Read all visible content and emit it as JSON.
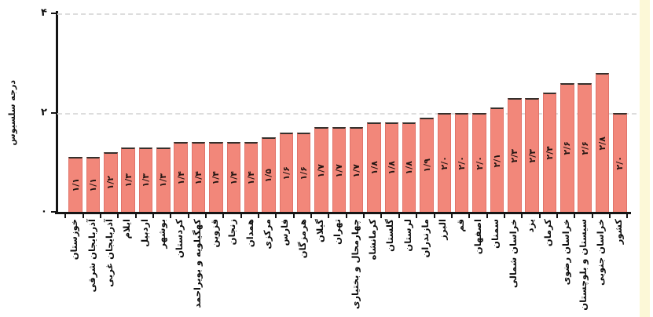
{
  "chart_data": {
    "type": "bar",
    "title": "",
    "ylabel": "درجه سلسیوس",
    "xlabel": "",
    "ylim": [
      0,
      4
    ],
    "yticks": [
      {
        "value": 4,
        "label": "۴"
      },
      {
        "value": 2,
        "label": "۲"
      },
      {
        "value": 0,
        "label": "۰"
      }
    ],
    "grid": {
      "horizontal_dashed_at": [
        2,
        4
      ]
    },
    "legend": null,
    "categories": [
      "خوزستان",
      "آذربایجان شرقی",
      "آذربایجان غربی",
      "ایلام",
      "اردبیل",
      "بوشهر",
      "کردستان",
      "کهگیلویه و بویراحمد",
      "قزوین",
      "زنجان",
      "همدان",
      "مرکزی",
      "فارس",
      "هرمزگان",
      "گیلان",
      "تهران",
      "چهارمحال و بختیاری",
      "کرمانشاه",
      "گلستان",
      "لرستان",
      "مازندران",
      "البرز",
      "قم",
      "اصفهان",
      "سمنان",
      "خراسان شمالی",
      "یزد",
      "کرمان",
      "خراسان رضوی",
      "سیستان و بلوچستان",
      "خراسان جنوبی",
      "کشور"
    ],
    "values": [
      1.1,
      1.1,
      1.2,
      1.3,
      1.3,
      1.3,
      1.4,
      1.4,
      1.4,
      1.4,
      1.4,
      1.5,
      1.6,
      1.6,
      1.7,
      1.7,
      1.7,
      1.8,
      1.8,
      1.8,
      1.9,
      2.0,
      2.0,
      2.0,
      2.1,
      2.3,
      2.3,
      2.4,
      2.6,
      2.6,
      2.8,
      2.0
    ],
    "value_labels": [
      "۱/۱",
      "۱/۱",
      "۱/۲",
      "۱/۳",
      "۱/۳",
      "۱/۳",
      "۱/۴",
      "۱/۴",
      "۱/۴",
      "۱/۴",
      "۱/۴",
      "۱/۵",
      "۱/۶",
      "۱/۶",
      "۱/۷",
      "۱/۷",
      "۱/۷",
      "۱/۸",
      "۱/۸",
      "۱/۸",
      "۱/۹",
      "۲/۰",
      "۲/۰",
      "۲/۰",
      "۲/۱",
      "۲/۳",
      "۲/۳",
      "۲/۴",
      "۲/۶",
      "۲/۶",
      "۲/۸",
      "۲/۰"
    ],
    "colors": {
      "bar_fill": "#f2877a",
      "bar_side_edge": "#e0746a",
      "bar_top_edge": "#35302c",
      "axis": "#151515",
      "grid": "#dddddd",
      "value_label": "#241512",
      "tick_label": "#0e0e0e",
      "page_edge_strip": "#fcf8d7"
    }
  }
}
